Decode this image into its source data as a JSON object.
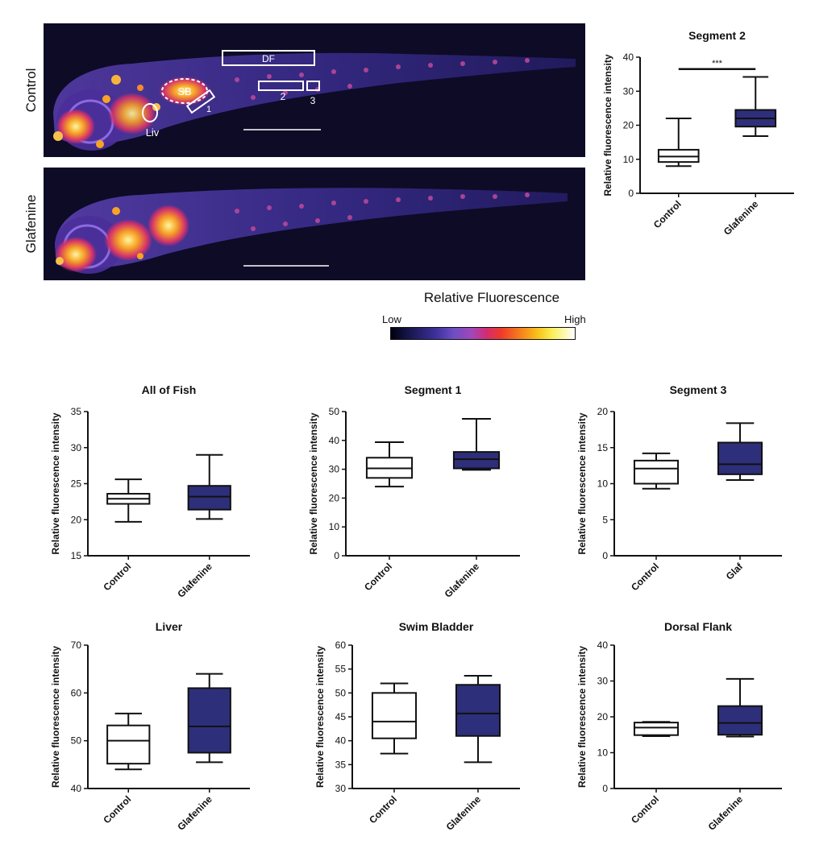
{
  "panels": {
    "control_label": "Control",
    "glafenine_label": "Glafenine",
    "regions": {
      "df": "DF",
      "sb": "SB",
      "liv": "Liv",
      "seg1": "1",
      "seg2": "2",
      "seg3": "3"
    }
  },
  "colorbar": {
    "title": "Relative Fluorescence",
    "low": "Low",
    "high": "High"
  },
  "colors": {
    "control_fill": "#ffffff",
    "glafenine_fill": "#2e2f7a",
    "axis": "#111111"
  },
  "chart_data": [
    {
      "id": "segment2",
      "type": "box",
      "title": "Segment 2",
      "ylabel": "Relative fluorescence intensity",
      "ylim": [
        0,
        40
      ],
      "yticks": [
        "0",
        "10",
        "20",
        "30",
        "40"
      ],
      "categories": [
        "Control",
        "Glafenine"
      ],
      "annotation": "***",
      "boxes": [
        {
          "min": 8,
          "q1": 9.2,
          "median": 10.8,
          "q3": 12.8,
          "max": 22
        },
        {
          "min": 16.8,
          "q1": 19.6,
          "median": 22,
          "q3": 24.5,
          "max": 34.2
        }
      ]
    },
    {
      "id": "all-of-fish",
      "type": "box",
      "title": "All of Fish",
      "ylabel": "Relative fluorescence intensity",
      "ylim": [
        15,
        35
      ],
      "yticks": [
        "15",
        "20",
        "25",
        "30",
        "35"
      ],
      "categories": [
        "Control",
        "Glafenine"
      ],
      "boxes": [
        {
          "min": 19.7,
          "q1": 22.2,
          "median": 22.9,
          "q3": 23.6,
          "max": 25.6
        },
        {
          "min": 20.1,
          "q1": 21.4,
          "median": 23.2,
          "q3": 24.7,
          "max": 29
        }
      ]
    },
    {
      "id": "segment1",
      "type": "box",
      "title": "Segment 1",
      "ylabel": "Relative fluorescence intensity",
      "ylim": [
        0,
        50
      ],
      "yticks": [
        "0",
        "10",
        "20",
        "30",
        "40",
        "50"
      ],
      "categories": [
        "Control",
        "Glafenine"
      ],
      "boxes": [
        {
          "min": 24,
          "q1": 27,
          "median": 30.3,
          "q3": 34,
          "max": 39.4
        },
        {
          "min": 29.8,
          "q1": 30.3,
          "median": 33.5,
          "q3": 36,
          "max": 47.5
        }
      ]
    },
    {
      "id": "segment3",
      "type": "box",
      "title": "Segment 3",
      "ylabel": "Relative fluorescence intensity",
      "ylim": [
        0,
        20
      ],
      "yticks": [
        "0",
        "5",
        "10",
        "15",
        "20"
      ],
      "categories": [
        "Control",
        "Glaf"
      ],
      "boxes": [
        {
          "min": 9.3,
          "q1": 10,
          "median": 12.1,
          "q3": 13.2,
          "max": 14.2
        },
        {
          "min": 10.5,
          "q1": 11.3,
          "median": 12.7,
          "q3": 15.7,
          "max": 18.4
        }
      ]
    },
    {
      "id": "liver",
      "type": "box",
      "title": "Liver",
      "ylabel": "Relative fluorescence intensity",
      "ylim": [
        40,
        70
      ],
      "yticks": [
        "40",
        "50",
        "60",
        "70"
      ],
      "categories": [
        "Control",
        "Glafenine"
      ],
      "boxes": [
        {
          "min": 44,
          "q1": 45.2,
          "median": 50,
          "q3": 53.2,
          "max": 55.7
        },
        {
          "min": 45.5,
          "q1": 47.5,
          "median": 53,
          "q3": 61,
          "max": 64
        }
      ]
    },
    {
      "id": "swim-bladder",
      "type": "box",
      "title": "Swim Bladder",
      "ylabel": "Relative fluorescence intensity",
      "ylim": [
        30,
        60
      ],
      "yticks": [
        "30",
        "35",
        "40",
        "45",
        "50",
        "55",
        "60"
      ],
      "categories": [
        "Control",
        "Glafenine"
      ],
      "boxes": [
        {
          "min": 37.3,
          "q1": 40.5,
          "median": 44,
          "q3": 50,
          "max": 52
        },
        {
          "min": 35.5,
          "q1": 41,
          "median": 45.7,
          "q3": 51.7,
          "max": 53.6
        }
      ]
    },
    {
      "id": "dorsal-flank",
      "type": "box",
      "title": "Dorsal Flank",
      "ylabel": "Relative fluorescence intensity",
      "ylim": [
        0,
        40
      ],
      "yticks": [
        "0",
        "10",
        "20",
        "30",
        "40"
      ],
      "categories": [
        "Control",
        "Glafenine"
      ],
      "boxes": [
        {
          "min": 14.6,
          "q1": 14.9,
          "median": 17,
          "q3": 18.4,
          "max": 18.6
        },
        {
          "min": 14.5,
          "q1": 15,
          "median": 18.3,
          "q3": 23,
          "max": 30.6
        }
      ]
    }
  ]
}
